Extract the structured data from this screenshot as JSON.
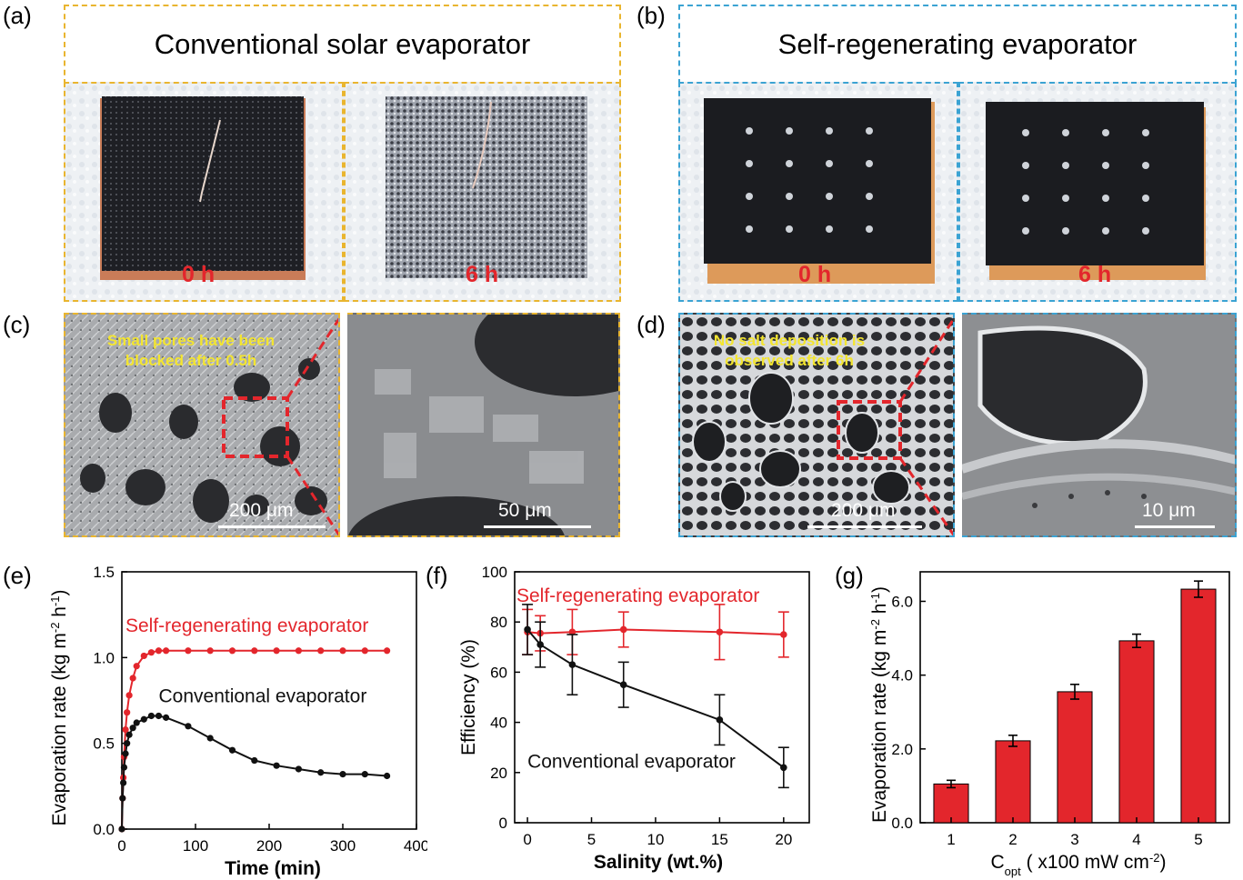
{
  "panels": {
    "a": {
      "label": "(a)",
      "title": "Conventional solar evaporator",
      "t0": "0 h",
      "t1": "6 h"
    },
    "b": {
      "label": "(b)",
      "title": "Self-regenerating evaporator",
      "t0": "0 h",
      "t1": "6 h"
    },
    "c": {
      "label": "(c)",
      "annotation_line1": "Small pores  have been",
      "annotation_line2": "blocked after 0.5h",
      "scale1": "200 μm",
      "scale2": "50 μm"
    },
    "d": {
      "label": "(d)",
      "annotation_line1": "No salt deposition is",
      "annotation_line2": "observed after 6h",
      "scale1": "200 μm",
      "scale2": "10 μm"
    },
    "e": {
      "label": "(e)"
    },
    "f": {
      "label": "(f)"
    },
    "g": {
      "label": "(g)"
    }
  },
  "colors": {
    "red": "#E3262C",
    "black": "#111111",
    "yellow_dash": "#E9B52F",
    "blue_dash": "#3BA3D3",
    "annotation": "#F3E530"
  },
  "chart_data": [
    {
      "id": "e",
      "type": "line",
      "xlabel": "Time (min)",
      "ylabel_parts": [
        "Evaporation rate (kg m",
        "-2",
        " h",
        "-1",
        ")"
      ],
      "xlim": [
        0,
        400
      ],
      "ylim": [
        0,
        1.5
      ],
      "xticks": [
        "0",
        "100",
        "200",
        "300",
        "400"
      ],
      "yticks": [
        "0.0",
        "0.5",
        "1.0",
        "1.5"
      ],
      "series": [
        {
          "name": "Self-regenerating evaporator",
          "color": "#E3262C",
          "x": [
            0,
            1,
            2,
            3,
            5,
            7,
            10,
            15,
            20,
            30,
            40,
            50,
            60,
            90,
            120,
            150,
            180,
            210,
            240,
            270,
            300,
            330,
            360
          ],
          "y": [
            0,
            0.18,
            0.3,
            0.42,
            0.58,
            0.68,
            0.78,
            0.88,
            0.95,
            1.01,
            1.03,
            1.04,
            1.04,
            1.04,
            1.04,
            1.04,
            1.04,
            1.04,
            1.04,
            1.04,
            1.04,
            1.04,
            1.04
          ]
        },
        {
          "name": "Conventional evaporator",
          "color": "#111111",
          "x": [
            0,
            1,
            2,
            3,
            5,
            7,
            10,
            15,
            20,
            30,
            40,
            50,
            60,
            90,
            120,
            150,
            180,
            210,
            240,
            270,
            300,
            330,
            360
          ],
          "y": [
            0,
            0.18,
            0.27,
            0.36,
            0.44,
            0.5,
            0.55,
            0.59,
            0.62,
            0.64,
            0.66,
            0.66,
            0.65,
            0.6,
            0.53,
            0.46,
            0.4,
            0.37,
            0.35,
            0.33,
            0.32,
            0.32,
            0.31
          ]
        }
      ]
    },
    {
      "id": "f",
      "type": "line",
      "xlabel": "Salinity (wt.%)",
      "ylabel": "Efficiency (%)",
      "xlim": [
        -1,
        22
      ],
      "ylim": [
        0,
        100
      ],
      "xticks": [
        "0",
        "5",
        "10",
        "15",
        "20"
      ],
      "yticks": [
        "0",
        "20",
        "40",
        "60",
        "80",
        "100"
      ],
      "series": [
        {
          "name": "Self-regenerating evaporator",
          "color": "#E3262C",
          "x": [
            0,
            1,
            3.5,
            7.5,
            15,
            20
          ],
          "y": [
            76,
            75.5,
            76,
            77,
            76,
            75
          ],
          "err": [
            9,
            7,
            9,
            7,
            11,
            9
          ]
        },
        {
          "name": "Conventional evaporator",
          "color": "#111111",
          "x": [
            0,
            1,
            3.5,
            7.5,
            15,
            20
          ],
          "y": [
            77,
            71,
            63,
            55,
            41,
            22
          ],
          "err": [
            10,
            9,
            12,
            9,
            10,
            8
          ]
        }
      ]
    },
    {
      "id": "g",
      "type": "bar",
      "xlabel_main": "C",
      "xlabel_sub": "opt",
      "xlabel_rest": " ( x100 mW cm",
      "xlabel_sup": "-2",
      "xlabel_end": ")",
      "ylabel_parts": [
        "Evaporation rate (kg m",
        "-2",
        " h",
        "-1",
        ")"
      ],
      "ylim": [
        0,
        6.8
      ],
      "yticks": [
        "0.0",
        "2.0",
        "4.0",
        "6.0"
      ],
      "categories": [
        "1",
        "2",
        "3",
        "4",
        "5"
      ],
      "values": [
        1.05,
        2.22,
        3.55,
        4.93,
        6.33
      ],
      "err": [
        0.1,
        0.15,
        0.2,
        0.18,
        0.22
      ],
      "color": "#E3262C"
    }
  ]
}
